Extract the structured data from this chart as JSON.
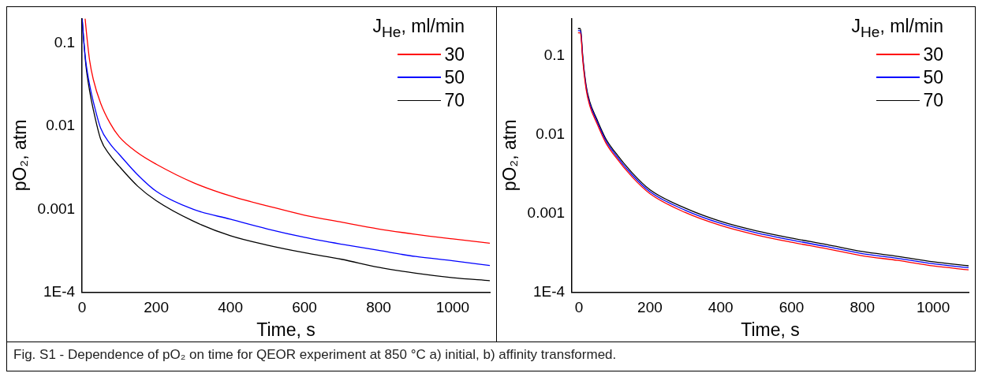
{
  "chart_data": [
    {
      "type": "line",
      "xlabel": "Time, s",
      "ylabel": "pO₂, atm",
      "legend_title": "J$_{He}$, ml/min",
      "legend": "top right",
      "log": "y",
      "xlim": [
        0,
        1100
      ],
      "xticks": [
        0,
        200,
        400,
        600,
        800,
        1000
      ],
      "ylim": [
        0.0001,
        0.2
      ],
      "yticks": [
        {
          "value": 0.0001,
          "label": "1E-4"
        },
        0.001,
        0.01,
        0.1
      ],
      "annotations": [
        "Fig. S1 - Dependence of pO₂ on time for QEOR experiment at 850 °C a) initial, b) affinity transformed."
      ],
      "series": [
        {
          "name": "30",
          "color": "#ff0000",
          "x": [
            8,
            12,
            20,
            30,
            50,
            75,
            100,
            150,
            200,
            300,
            400,
            500,
            600,
            700,
            800,
            900,
            1000,
            1100
          ],
          "values": [
            0.2,
            0.13,
            0.063,
            0.037,
            0.019,
            0.011,
            0.0075,
            0.0048,
            0.0035,
            0.0021,
            0.00145,
            0.0011,
            0.00085,
            0.0007,
            0.00058,
            0.0005,
            0.00044,
            0.00039
          ]
        },
        {
          "name": "50",
          "color": "#0000ff",
          "x": [
            0,
            5,
            10,
            20,
            30,
            50,
            75,
            100,
            150,
            200,
            300,
            400,
            500,
            600,
            700,
            800,
            900,
            1000,
            1100
          ],
          "values": [
            0.2,
            0.1,
            0.06,
            0.032,
            0.02,
            0.0095,
            0.0062,
            0.0046,
            0.0026,
            0.00165,
            0.001,
            0.00076,
            0.00058,
            0.00046,
            0.00038,
            0.00032,
            0.00027,
            0.00024,
            0.00021
          ]
        },
        {
          "name": "70",
          "color": "#000000",
          "x": [
            0,
            5,
            10,
            20,
            30,
            50,
            75,
            100,
            150,
            200,
            300,
            400,
            500,
            600,
            700,
            800,
            900,
            1000,
            1100
          ],
          "values": [
            0.2,
            0.1,
            0.055,
            0.027,
            0.016,
            0.007,
            0.0045,
            0.0033,
            0.0019,
            0.00127,
            0.00072,
            0.00048,
            0.00037,
            0.0003,
            0.00025,
            0.0002,
            0.00017,
            0.00015,
            0.000138
          ]
        }
      ]
    },
    {
      "type": "line",
      "xlabel": "Time, s",
      "ylabel": "pO₂, atm",
      "legend_title": "J$_{He}$, ml/min",
      "legend": "top right",
      "log": "y",
      "xlim": [
        -20,
        1100
      ],
      "xticks": [
        0,
        200,
        400,
        600,
        800,
        1000
      ],
      "ylim": [
        0.0001,
        0.3
      ],
      "yticks": [
        {
          "value": 0.0001,
          "label": "1E-4"
        },
        0.001,
        0.01,
        0.1
      ],
      "series": [
        {
          "name": "30",
          "color": "#ff0000",
          "x": [
            -3,
            3,
            6,
            10,
            20,
            30,
            50,
            75,
            100,
            150,
            200,
            300,
            400,
            500,
            600,
            700,
            800,
            900,
            1000,
            1100
          ],
          "values": [
            0.197,
            0.197,
            0.169,
            0.094,
            0.0376,
            0.0235,
            0.0141,
            0.008,
            0.00545,
            0.00291,
            0.00179,
            0.00103,
            0.000705,
            0.000536,
            0.000432,
            0.000357,
            0.000291,
            0.000254,
            0.000216,
            0.000193
          ]
        },
        {
          "name": "50",
          "color": "#0000ff",
          "x": [
            -3,
            3,
            6,
            10,
            20,
            30,
            50,
            75,
            100,
            150,
            200,
            300,
            400,
            500,
            600,
            700,
            800,
            900,
            1000,
            1100
          ],
          "values": [
            0.21,
            0.21,
            0.18,
            0.1,
            0.04,
            0.025,
            0.015,
            0.0085,
            0.0058,
            0.0031,
            0.0019,
            0.0011,
            0.00075,
            0.00057,
            0.00046,
            0.00038,
            0.00031,
            0.00027,
            0.00023,
            0.000205
          ]
        },
        {
          "name": "70",
          "color": "#000000",
          "x": [
            -3,
            3,
            6,
            10,
            20,
            30,
            50,
            75,
            100,
            150,
            200,
            300,
            400,
            500,
            600,
            700,
            800,
            900,
            1000,
            1100
          ],
          "values": [
            0.223,
            0.223,
            0.191,
            0.106,
            0.0424,
            0.0265,
            0.0159,
            0.009,
            0.00615,
            0.00329,
            0.00201,
            0.00117,
            0.000795,
            0.000604,
            0.000488,
            0.000403,
            0.000329,
            0.000286,
            0.000244,
            0.000217
          ]
        }
      ]
    }
  ]
}
